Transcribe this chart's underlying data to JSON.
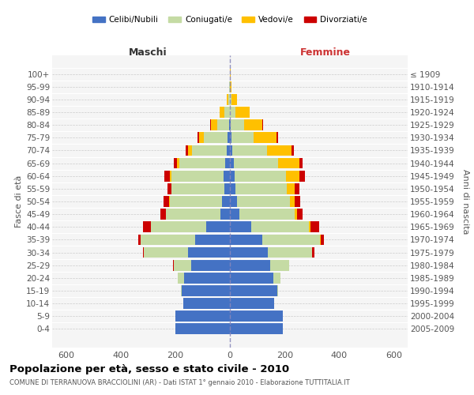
{
  "age_groups": [
    "0-4",
    "5-9",
    "10-14",
    "15-19",
    "20-24",
    "25-29",
    "30-34",
    "35-39",
    "40-44",
    "45-49",
    "50-54",
    "55-59",
    "60-64",
    "65-69",
    "70-74",
    "75-79",
    "80-84",
    "85-89",
    "90-94",
    "95-99",
    "100+"
  ],
  "birth_years": [
    "2005-2009",
    "2000-2004",
    "1995-1999",
    "1990-1994",
    "1985-1989",
    "1980-1984",
    "1975-1979",
    "1970-1974",
    "1965-1969",
    "1960-1964",
    "1955-1959",
    "1950-1954",
    "1945-1949",
    "1940-1944",
    "1935-1939",
    "1930-1934",
    "1925-1929",
    "1920-1924",
    "1915-1919",
    "1910-1914",
    "≤ 1909"
  ],
  "maschi": {
    "celibi": [
      200,
      198,
      170,
      175,
      168,
      142,
      152,
      128,
      88,
      35,
      28,
      20,
      22,
      18,
      12,
      8,
      3,
      1,
      0,
      0,
      0
    ],
    "coniugati": [
      0,
      0,
      0,
      4,
      22,
      63,
      162,
      198,
      202,
      198,
      193,
      193,
      192,
      168,
      128,
      88,
      44,
      18,
      5,
      2,
      0
    ],
    "vedovi": [
      0,
      0,
      0,
      0,
      0,
      0,
      0,
      0,
      0,
      0,
      2,
      2,
      5,
      9,
      14,
      18,
      22,
      18,
      8,
      2,
      0
    ],
    "divorziati": [
      0,
      0,
      0,
      0,
      0,
      2,
      4,
      10,
      28,
      20,
      20,
      14,
      20,
      10,
      8,
      5,
      2,
      0,
      0,
      0,
      0
    ]
  },
  "femmine": {
    "nubili": [
      193,
      193,
      163,
      172,
      158,
      148,
      138,
      118,
      78,
      35,
      26,
      20,
      18,
      14,
      9,
      5,
      3,
      1,
      0,
      0,
      0
    ],
    "coniugate": [
      0,
      0,
      0,
      4,
      28,
      68,
      163,
      212,
      212,
      202,
      193,
      188,
      188,
      162,
      128,
      83,
      48,
      18,
      7,
      1,
      0
    ],
    "vedove": [
      0,
      0,
      0,
      0,
      0,
      0,
      0,
      2,
      4,
      9,
      18,
      28,
      48,
      78,
      88,
      83,
      68,
      53,
      20,
      5,
      2
    ],
    "divorziate": [
      0,
      0,
      0,
      0,
      0,
      2,
      7,
      12,
      33,
      20,
      20,
      17,
      20,
      12,
      9,
      5,
      2,
      0,
      0,
      0,
      0
    ]
  },
  "colors": {
    "celibi": "#4472c4",
    "coniugati": "#c5dba4",
    "vedovi": "#ffc000",
    "divorziati": "#cc0000"
  },
  "xlim": 650,
  "title": "Popolazione per età, sesso e stato civile - 2010",
  "subtitle": "COMUNE DI TERRANUOVA BRACCIOLINI (AR) - Dati ISTAT 1° gennaio 2010 - Elaborazione TUTTITALIA.IT",
  "ylabel_left": "Fasce di età",
  "ylabel_right": "Anni di nascita",
  "header_left": "Maschi",
  "header_right": "Femmine",
  "legend_labels": [
    "Celibi/Nubili",
    "Coniugati/e",
    "Vedovi/e",
    "Divorziati/e"
  ],
  "bg_color": "#f0f0f0",
  "plot_bg": "#f5f5f5"
}
